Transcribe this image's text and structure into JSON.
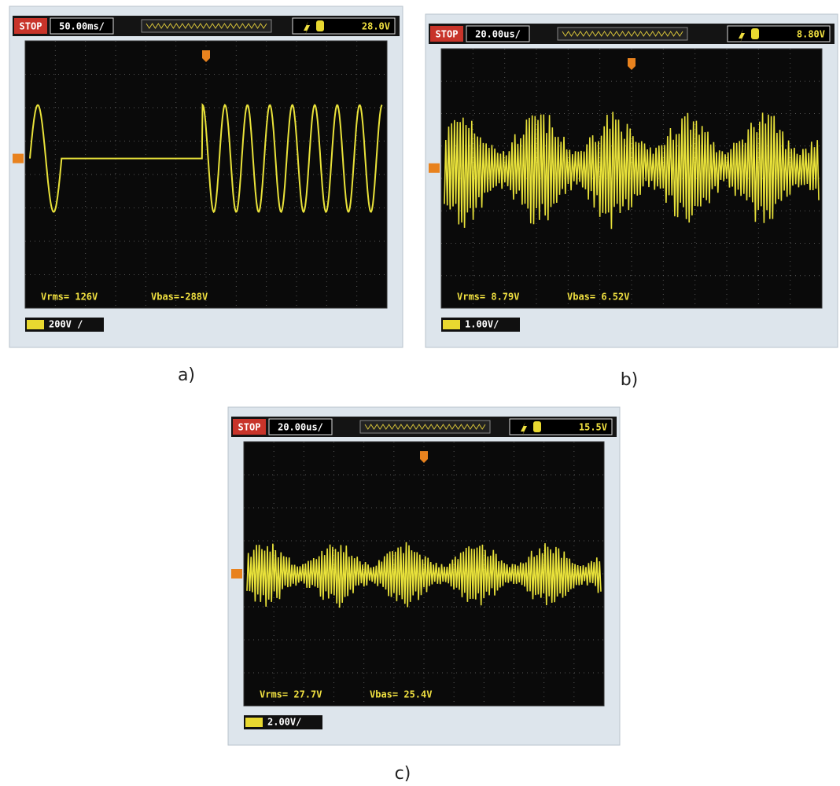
{
  "panels": [
    {
      "status": "STOP",
      "timebase": "50.00ms/",
      "trigger_level": "28.0V",
      "vrms": "Vrms= 126V",
      "vbas": "Vbas=-288V",
      "scale": "200V /",
      "caption": "a)"
    },
    {
      "status": "STOP",
      "timebase": "20.00us/",
      "trigger_level": "8.80V",
      "vrms": "Vrms= 8.79V",
      "vbas": "Vbas= 6.52V",
      "scale": "1.00V/",
      "caption": "b)"
    },
    {
      "status": "STOP",
      "timebase": "20.00us/",
      "trigger_level": "15.5V",
      "vrms": "Vrms= 27.7V",
      "vbas": "Vbas= 25.4V",
      "scale": "2.00V/",
      "caption": "c)"
    }
  ]
}
